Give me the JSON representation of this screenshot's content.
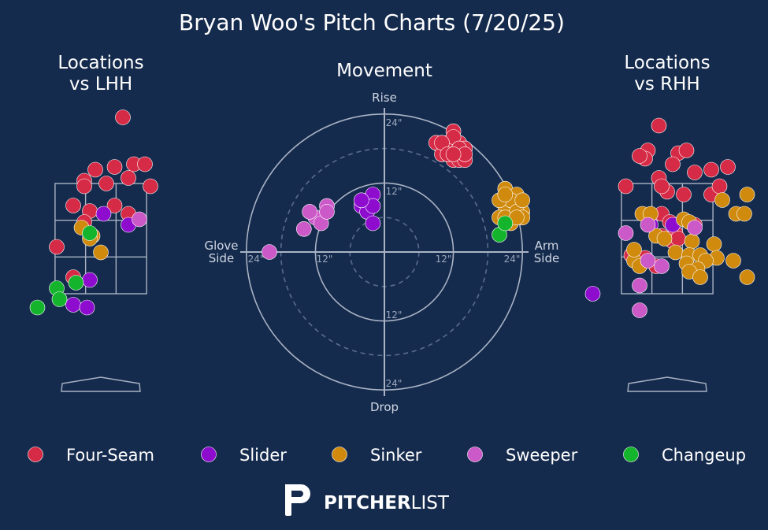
{
  "title": "Bryan Woo's Pitch Charts (7/20/25)",
  "colors": {
    "background": "#152b4d",
    "Four-Seam": "#d62b46",
    "Slider": "#8d0cce",
    "Sinker": "#d08b0f",
    "Sweeper": "#cc59c8",
    "Changeup": "#14b52d"
  },
  "logo": {
    "word_bold": "PITCHER",
    "word_light": "LIST"
  },
  "chart_data": [
    {
      "type": "scatter",
      "title": "Locations\nvs LHH",
      "x": [],
      "series": [
        {
          "name": "Four-Seam",
          "points": [
            [
              0.4,
              4.7
            ],
            [
              -0.1,
              3.75
            ],
            [
              0.25,
              3.8
            ],
            [
              0.6,
              3.85
            ],
            [
              0.5,
              3.6
            ],
            [
              -0.3,
              3.55
            ],
            [
              -0.3,
              3.45
            ],
            [
              0.1,
              3.5
            ],
            [
              -0.5,
              3.1
            ],
            [
              -0.2,
              3.0
            ],
            [
              0.25,
              3.1
            ],
            [
              0.5,
              2.95
            ],
            [
              -0.3,
              2.8
            ],
            [
              0.9,
              3.45
            ],
            [
              0.8,
              3.85
            ],
            [
              -0.8,
              2.35
            ],
            [
              -0.5,
              1.8
            ]
          ]
        },
        {
          "name": "Slider",
          "points": [
            [
              0.05,
              2.95
            ],
            [
              0.5,
              2.75
            ],
            [
              -0.2,
              1.75
            ],
            [
              -0.5,
              1.3
            ],
            [
              -0.25,
              1.25
            ]
          ]
        },
        {
          "name": "Sinker",
          "points": [
            [
              -0.35,
              2.7
            ],
            [
              -0.15,
              2.55
            ],
            [
              -0.2,
              2.5
            ],
            [
              0.0,
              2.25
            ]
          ]
        },
        {
          "name": "Sweeper",
          "points": [
            [
              0.7,
              2.85
            ]
          ]
        },
        {
          "name": "Changeup",
          "points": [
            [
              -0.2,
              2.6
            ],
            [
              -0.8,
              1.6
            ],
            [
              -0.45,
              1.7
            ],
            [
              -0.75,
              1.4
            ],
            [
              -1.15,
              1.25
            ]
          ]
        }
      ]
    },
    {
      "type": "scatter",
      "title": "Movement",
      "x_labels": {
        "left": "Glove\nSide",
        "right": "Arm\nSide",
        "top": "Rise",
        "bottom": "Drop"
      },
      "ring_labels": [
        "24\"",
        "12\"",
        "12\"",
        "24\"",
        "24\"",
        "12\"",
        "12\"",
        "24\""
      ],
      "series": [
        {
          "name": "Four-Seam",
          "points": [
            [
              12,
              21
            ],
            [
              11,
              19
            ],
            [
              13,
              19
            ],
            [
              12,
              18
            ],
            [
              10,
              18
            ],
            [
              13,
              17
            ],
            [
              14,
              18
            ],
            [
              11,
              18
            ],
            [
              12,
              16
            ],
            [
              13,
              16
            ],
            [
              9,
              19
            ],
            [
              10,
              17
            ],
            [
              14,
              16
            ],
            [
              12,
              20
            ],
            [
              13,
              18
            ],
            [
              10,
              19
            ],
            [
              11,
              17
            ],
            [
              14,
              17
            ],
            [
              12,
              17
            ]
          ]
        },
        {
          "name": "Slider",
          "points": [
            [
              -3,
              9
            ],
            [
              -2,
              10
            ],
            [
              -4,
              8
            ],
            [
              -3,
              7
            ],
            [
              -2,
              8
            ],
            [
              -2,
              5
            ],
            [
              -4,
              9
            ]
          ]
        },
        {
          "name": "Sinker",
          "points": [
            [
              21,
              11
            ],
            [
              22,
              8
            ],
            [
              23,
              10
            ],
            [
              24,
              7
            ],
            [
              21,
              8
            ],
            [
              22,
              9
            ],
            [
              20,
              9
            ],
            [
              23,
              7
            ],
            [
              24,
              6
            ],
            [
              22,
              5
            ],
            [
              20,
              6
            ],
            [
              21,
              6
            ],
            [
              23,
              6
            ],
            [
              24,
              9
            ],
            [
              21,
              10
            ]
          ]
        },
        {
          "name": "Sweeper",
          "points": [
            [
              -10,
              8
            ],
            [
              -12,
              6
            ],
            [
              -14,
              4
            ],
            [
              -11,
              5
            ],
            [
              -13,
              7
            ],
            [
              -10,
              7
            ],
            [
              -20,
              0
            ]
          ]
        },
        {
          "name": "Changeup",
          "points": [
            [
              20,
              3
            ],
            [
              21,
              5
            ]
          ]
        }
      ]
    },
    {
      "type": "scatter",
      "title": "Locations\nvs RHH",
      "series": [
        {
          "name": "Four-Seam",
          "points": [
            [
              -0.15,
              4.55
            ],
            [
              -0.35,
              4.1
            ],
            [
              -0.4,
              3.95
            ],
            [
              -0.5,
              4.0
            ],
            [
              0.2,
              4.05
            ],
            [
              0.35,
              4.1
            ],
            [
              0.1,
              3.85
            ],
            [
              0.5,
              3.7
            ],
            [
              0.8,
              3.75
            ],
            [
              1.1,
              3.8
            ],
            [
              -0.15,
              3.6
            ],
            [
              0.0,
              3.35
            ],
            [
              -0.1,
              3.45
            ],
            [
              0.3,
              3.3
            ],
            [
              0.8,
              3.3
            ],
            [
              0.95,
              3.45
            ],
            [
              -0.75,
              3.45
            ],
            [
              -0.3,
              2.9
            ],
            [
              -0.1,
              2.95
            ],
            [
              0.05,
              2.8
            ],
            [
              0.15,
              2.6
            ],
            [
              0.5,
              2.75
            ],
            [
              -0.1,
              2.55
            ],
            [
              -0.65,
              2.2
            ],
            [
              -0.4,
              2.15
            ],
            [
              -0.2,
              2.0
            ],
            [
              0.1,
              2.45
            ],
            [
              0.2,
              2.5
            ]
          ]
        },
        {
          "name": "Slider",
          "points": [
            [
              0.1,
              2.75
            ],
            [
              -0.3,
              2.75
            ],
            [
              -1.35,
              1.5
            ]
          ]
        },
        {
          "name": "Sinker",
          "points": [
            [
              -0.45,
              2.95
            ],
            [
              -0.3,
              2.95
            ],
            [
              0.3,
              2.85
            ],
            [
              0.4,
              2.8
            ],
            [
              -0.2,
              2.55
            ],
            [
              -0.05,
              2.5
            ],
            [
              0.45,
              2.45
            ],
            [
              0.85,
              2.4
            ],
            [
              0.15,
              2.25
            ],
            [
              0.4,
              2.2
            ],
            [
              0.6,
              2.2
            ],
            [
              0.9,
              2.15
            ],
            [
              0.7,
              2.1
            ],
            [
              0.35,
              2.05
            ],
            [
              0.55,
              1.95
            ],
            [
              0.4,
              1.9
            ],
            [
              0.6,
              1.8
            ],
            [
              -0.6,
              2.1
            ],
            [
              -0.6,
              2.3
            ],
            [
              -0.5,
              2.0
            ],
            [
              1.2,
              2.1
            ],
            [
              1.25,
              2.95
            ],
            [
              1.4,
              2.95
            ],
            [
              1.0,
              3.2
            ],
            [
              1.45,
              3.3
            ],
            [
              1.45,
              1.8
            ]
          ]
        },
        {
          "name": "Sweeper",
          "points": [
            [
              -0.35,
              2.75
            ],
            [
              -0.5,
              1.2
            ],
            [
              -0.75,
              2.6
            ],
            [
              -0.35,
              2.1
            ],
            [
              -0.1,
              2.0
            ],
            [
              -0.5,
              1.65
            ],
            [
              0.5,
              2.7
            ]
          ]
        },
        {
          "name": "Changeup",
          "points": []
        }
      ]
    }
  ],
  "legend": [
    "Four-Seam",
    "Slider",
    "Sinker",
    "Sweeper",
    "Changeup"
  ]
}
